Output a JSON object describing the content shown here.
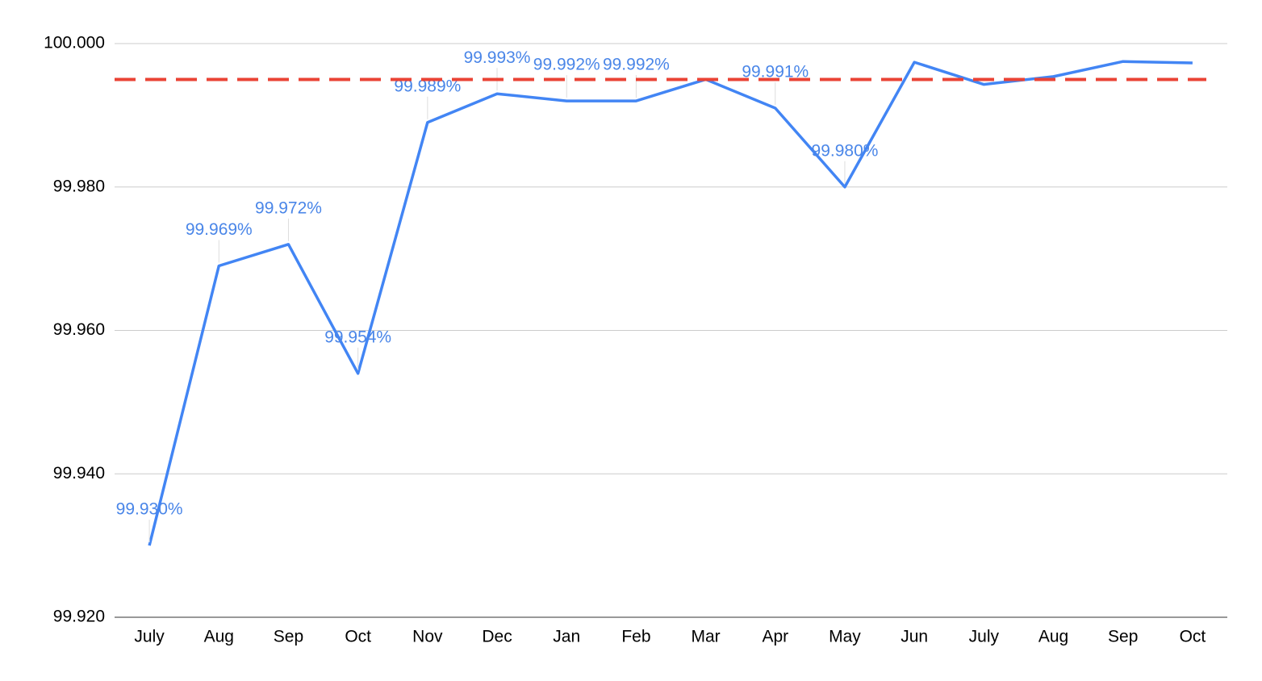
{
  "chart_data": {
    "type": "line",
    "categories": [
      "July",
      "Aug",
      "Sep",
      "Oct",
      "Nov",
      "Dec",
      "Jan",
      "Feb",
      "Mar",
      "Apr",
      "May",
      "Jun",
      "July",
      "Aug",
      "Sep",
      "Oct"
    ],
    "series": [
      {
        "color": "#4285f4",
        "style": "solid",
        "values": [
          99.93,
          99.969,
          99.972,
          99.954,
          99.989,
          99.993,
          99.992,
          99.992,
          99.995,
          99.991,
          99.98,
          99.9974,
          99.9943,
          99.9954,
          99.9975,
          99.9973
        ],
        "value_labels": [
          "99.930%",
          "99.969%",
          "99.972%",
          "99.954%",
          "99.989%",
          "99.993%",
          "99.992%",
          "99.992%",
          null,
          "99.991%",
          "99.980%",
          null,
          null,
          null,
          null,
          null
        ]
      },
      {
        "color": "#ea4335",
        "style": "dashed",
        "values": [
          99.995,
          99.995,
          99.995,
          99.995,
          99.995,
          99.995,
          99.995,
          99.995,
          99.995,
          99.995,
          99.995,
          99.995,
          99.995,
          99.995,
          99.995,
          99.995
        ]
      }
    ],
    "ylim": [
      99.92,
      100.0
    ],
    "yticks": [
      {
        "value": 99.92,
        "label": "99.920"
      },
      {
        "value": 99.94,
        "label": "99.940"
      },
      {
        "value": 99.96,
        "label": "99.960"
      },
      {
        "value": 99.98,
        "label": "99.980"
      },
      {
        "value": 100,
        "label": "100.000"
      }
    ],
    "grid": true
  }
}
